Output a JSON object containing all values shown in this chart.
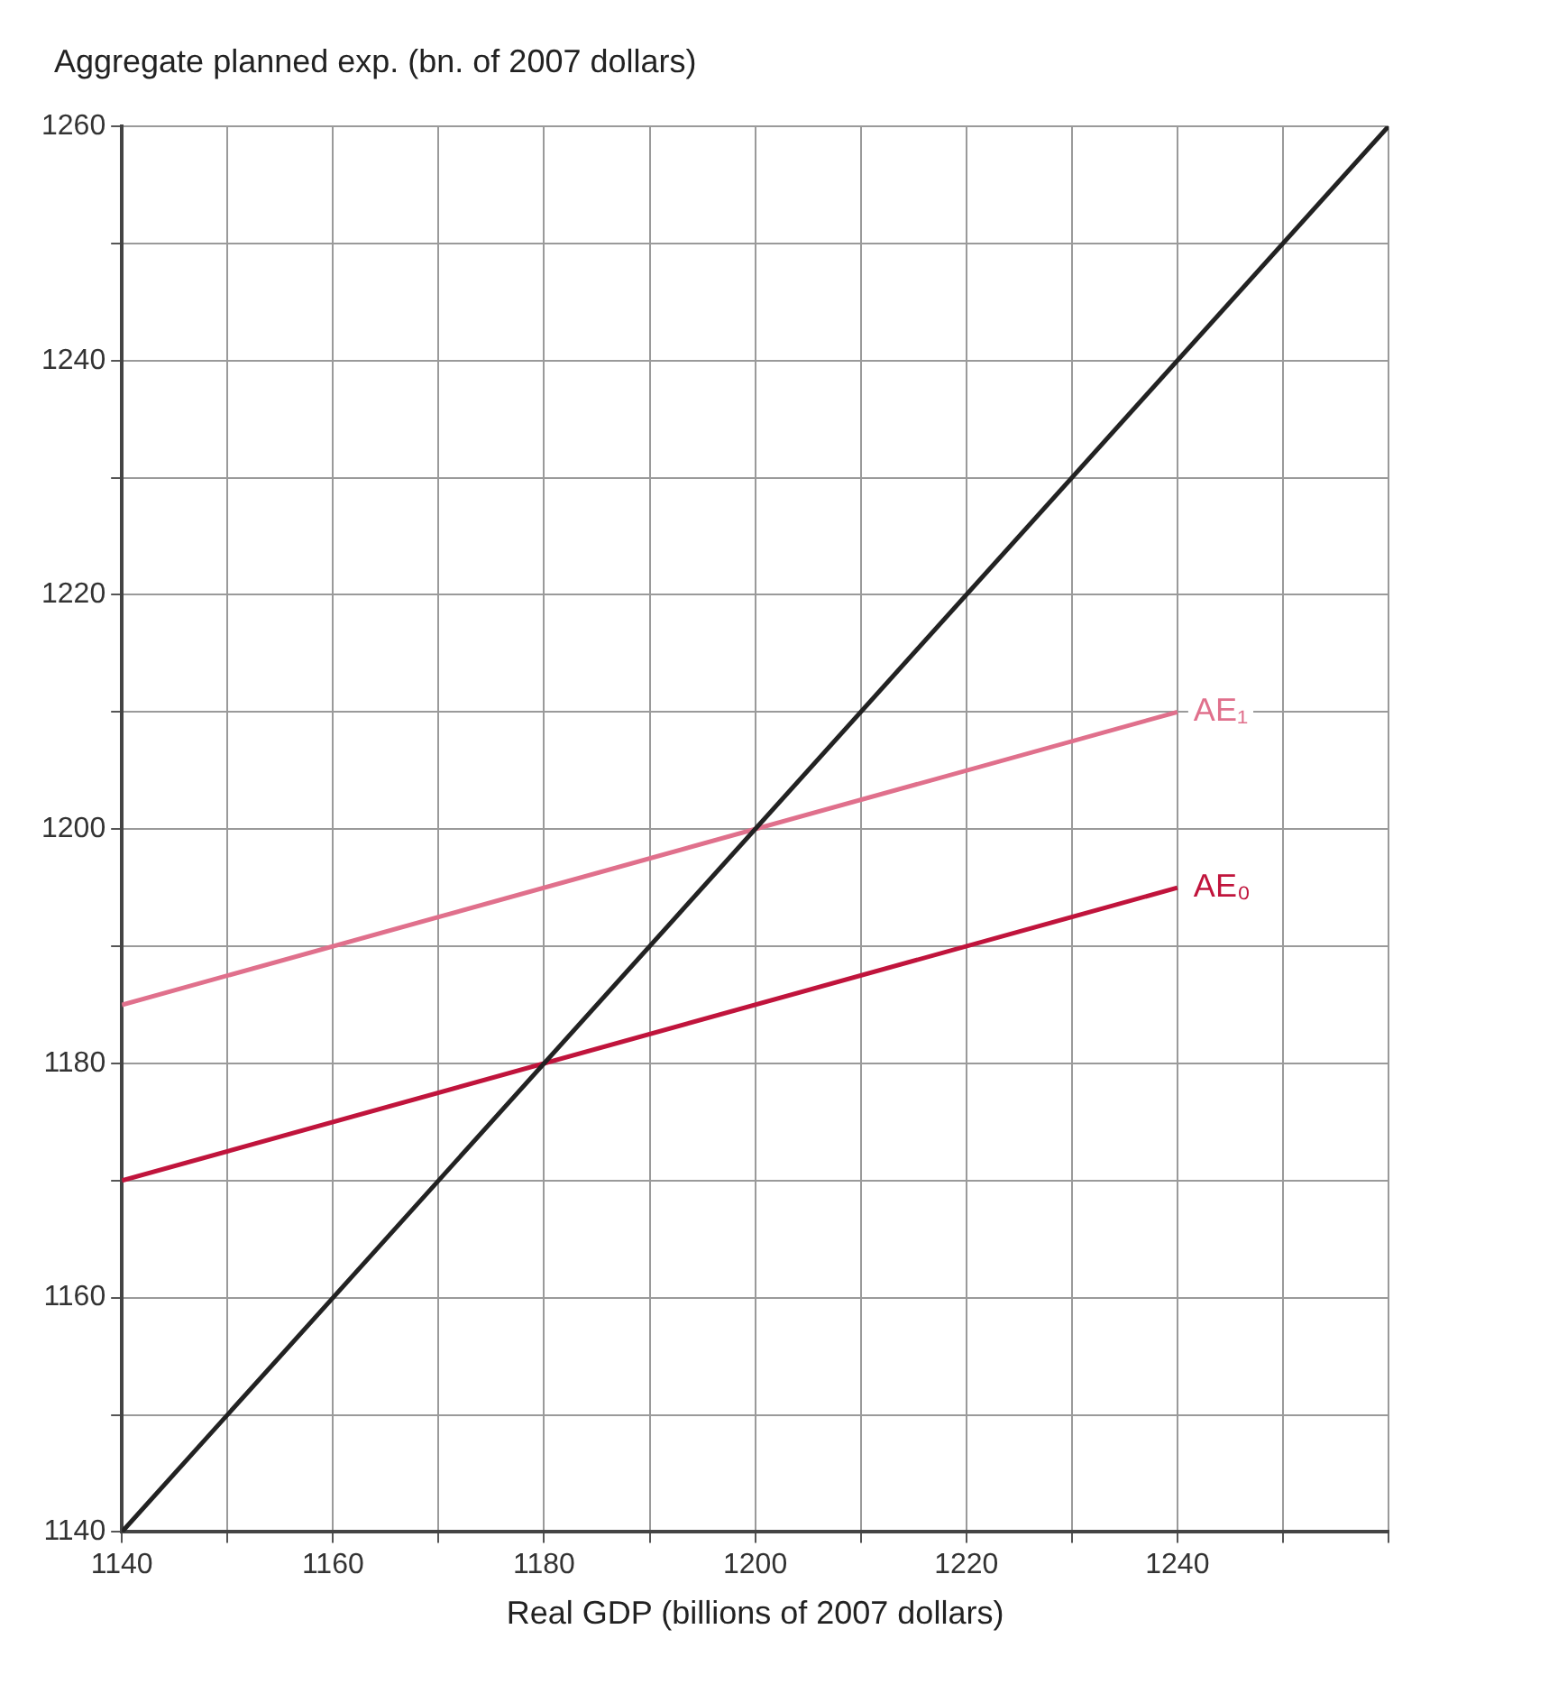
{
  "chart_data": {
    "type": "line",
    "ylabel": "Aggregate planned exp. (bn. of 2007 dollars)",
    "xlabel": "Real GDP (billions of 2007 dollars)",
    "series": [
      {
        "color": "#222222",
        "x": [
          1140,
          1260
        ],
        "values": [
          1140,
          1260
        ]
      },
      {
        "name": "AE₁",
        "color": "#e0708c",
        "x": [
          1140,
          1240
        ],
        "values": [
          1185,
          1210
        ]
      },
      {
        "name": "AE₀",
        "color": "#c0143c",
        "x": [
          1140,
          1240
        ],
        "values": [
          1170,
          1195
        ]
      }
    ],
    "xlim": [
      1140,
      1260
    ],
    "ylim": [
      1140,
      1260
    ],
    "xticks": [
      1140,
      {
        "value": 1150,
        "label": null
      },
      1160,
      {
        "value": 1170,
        "label": null
      },
      1180,
      {
        "value": 1190,
        "label": null
      },
      1200,
      {
        "value": 1210,
        "label": null
      },
      1220,
      {
        "value": 1230,
        "label": null
      },
      1240,
      {
        "value": 1250,
        "label": null
      },
      {
        "value": 1260,
        "label": null
      }
    ],
    "yticks": [
      1140,
      {
        "value": 1150,
        "label": null
      },
      1160,
      {
        "value": 1170,
        "label": null
      },
      1180,
      {
        "value": 1190,
        "label": null
      },
      1200,
      {
        "value": 1210,
        "label": null
      },
      1220,
      {
        "value": 1230,
        "label": null
      },
      1240,
      {
        "value": 1250,
        "label": null
      },
      1260
    ],
    "grid": true,
    "legend": false,
    "marker": "none",
    "line_style": "solid"
  }
}
